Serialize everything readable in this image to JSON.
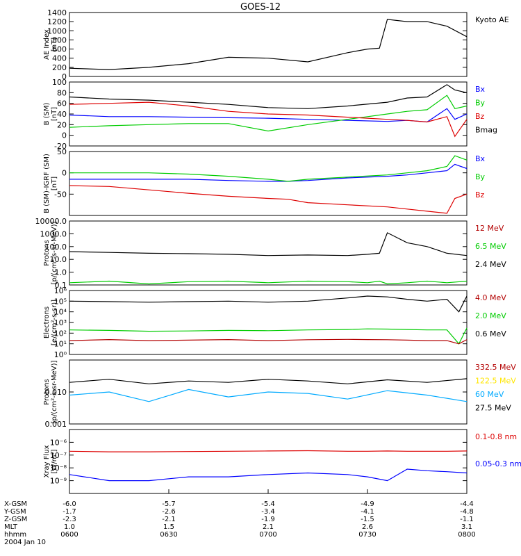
{
  "title": "GOES-12",
  "colors": {
    "black": "#000000",
    "blue": "#0000ff",
    "green": "#00cc00",
    "red": "#dd0000",
    "darkred": "#b30000",
    "yellow": "#ffe600",
    "cyan": "#00aaff"
  },
  "chart_data": [
    {
      "type": "line",
      "ylabel": "AE Index\n[nT]",
      "ylim": [
        0,
        1400
      ],
      "scale": "linear",
      "yticks": [
        [
          "0",
          0
        ],
        [
          "200",
          200
        ],
        [
          "400",
          400
        ],
        [
          "600",
          600
        ],
        [
          "800",
          800
        ],
        [
          "1000",
          1000
        ],
        [
          "1200",
          1200
        ],
        [
          "1400",
          1400
        ]
      ],
      "x": [
        0,
        0.1,
        0.2,
        0.3,
        0.4,
        0.5,
        0.6,
        0.7,
        0.75,
        0.78,
        0.8,
        0.85,
        0.9,
        0.95,
        1.0
      ],
      "series": [
        {
          "name": "Kyoto AE",
          "color": "black",
          "values": [
            180,
            150,
            200,
            280,
            420,
            400,
            320,
            520,
            600,
            620,
            1250,
            1200,
            1200,
            1100,
            870
          ]
        }
      ],
      "legend": [
        {
          "text": "Kyoto AE",
          "color": "black"
        }
      ]
    },
    {
      "type": "line",
      "ylabel": "B (SM)\n[nT]",
      "ylim": [
        -20,
        100
      ],
      "scale": "linear",
      "yticks": [
        [
          "-20",
          -20
        ],
        [
          "0",
          0
        ],
        [
          "20",
          20
        ],
        [
          "40",
          40
        ],
        [
          "60",
          60
        ],
        [
          "80",
          80
        ],
        [
          "100",
          100
        ]
      ],
      "x": [
        0,
        0.1,
        0.2,
        0.3,
        0.4,
        0.5,
        0.6,
        0.7,
        0.8,
        0.85,
        0.9,
        0.95,
        0.97,
        1.0
      ],
      "series": [
        {
          "name": "Bmag",
          "color": "black",
          "values": [
            72,
            68,
            66,
            62,
            58,
            52,
            50,
            55,
            62,
            70,
            72,
            95,
            85,
            80
          ]
        },
        {
          "name": "Bx",
          "color": "blue",
          "values": [
            38,
            35,
            35,
            34,
            33,
            32,
            30,
            28,
            26,
            28,
            25,
            50,
            30,
            40
          ]
        },
        {
          "name": "By",
          "color": "green",
          "values": [
            15,
            18,
            20,
            22,
            22,
            8,
            20,
            30,
            40,
            45,
            48,
            75,
            50,
            55
          ]
        },
        {
          "name": "Bz",
          "color": "red",
          "values": [
            58,
            60,
            62,
            55,
            45,
            40,
            38,
            34,
            30,
            28,
            25,
            35,
            -2,
            30
          ]
        }
      ],
      "legend": [
        {
          "text": "Bx",
          "color": "blue"
        },
        {
          "text": "By",
          "color": "green"
        },
        {
          "text": "Bz",
          "color": "red"
        },
        {
          "text": "Bmag",
          "color": "black"
        }
      ]
    },
    {
      "type": "line",
      "ylabel": "B (SM)-IGRF (SM)\n[nT]",
      "ylim": [
        -100,
        50
      ],
      "scale": "linear",
      "yticks": [
        [
          "-50",
          -50
        ],
        [
          "0",
          0
        ],
        [
          "50",
          50
        ]
      ],
      "x": [
        0,
        0.1,
        0.2,
        0.3,
        0.4,
        0.5,
        0.55,
        0.6,
        0.7,
        0.8,
        0.85,
        0.9,
        0.95,
        0.97,
        1.0
      ],
      "series": [
        {
          "name": "Bx",
          "color": "blue",
          "values": [
            -15,
            -15,
            -15,
            -15,
            -18,
            -20,
            -20,
            -18,
            -12,
            -8,
            -5,
            0,
            5,
            20,
            10
          ]
        },
        {
          "name": "By",
          "color": "green",
          "values": [
            0,
            0,
            0,
            -3,
            -8,
            -15,
            -20,
            -15,
            -10,
            -5,
            0,
            5,
            15,
            40,
            30
          ]
        },
        {
          "name": "Bz",
          "color": "red",
          "values": [
            -30,
            -32,
            -40,
            -48,
            -55,
            -60,
            -62,
            -70,
            -75,
            -80,
            -85,
            -90,
            -95,
            -60,
            -50
          ]
        }
      ],
      "legend": [
        {
          "text": "Bx",
          "color": "blue"
        },
        {
          "text": "By",
          "color": "green"
        },
        {
          "text": "Bz",
          "color": "red"
        }
      ]
    },
    {
      "type": "line",
      "ylabel": "Protons\n[p/(cm²-s-sr-MeV)]",
      "ylim": [
        0.1,
        10000
      ],
      "scale": "log",
      "yticks": [
        [
          "0.1",
          0.1
        ],
        [
          "1.0",
          1
        ],
        [
          "10.0",
          10
        ],
        [
          "100.0",
          100
        ],
        [
          "1000.0",
          1000
        ],
        [
          "10000.0",
          10000
        ]
      ],
      "x": [
        0,
        0.1,
        0.2,
        0.3,
        0.4,
        0.5,
        0.6,
        0.7,
        0.75,
        0.78,
        0.8,
        0.85,
        0.9,
        0.95,
        1.0
      ],
      "series": [
        {
          "name": "2.4 MeV",
          "color": "black",
          "values": [
            40,
            35,
            30,
            28,
            25,
            20,
            22,
            20,
            25,
            30,
            1200,
            200,
            100,
            30,
            20
          ]
        },
        {
          "name": "6.5 MeV",
          "color": "green",
          "values": [
            0.15,
            0.2,
            0.12,
            0.18,
            0.2,
            0.15,
            0.2,
            0.18,
            0.15,
            0.2,
            0.12,
            0.15,
            0.2,
            0.15,
            0.2
          ]
        }
      ],
      "legend": [
        {
          "text": "12 MeV",
          "color": "darkred"
        },
        {
          "text": "6.5 MeV",
          "color": "green"
        },
        {
          "text": "2.4 MeV",
          "color": "black"
        }
      ]
    },
    {
      "type": "line",
      "ylabel": "Electrons\n[e/(cm²-s-sr)]",
      "ylim": [
        1,
        1000000
      ],
      "scale": "log",
      "yticks": [
        [
          "10⁰",
          1
        ],
        [
          "10¹",
          10
        ],
        [
          "10²",
          100
        ],
        [
          "10³",
          1000
        ],
        [
          "10⁴",
          10000
        ],
        [
          "10⁵",
          100000
        ],
        [
          "10⁶",
          1000000
        ]
      ],
      "x": [
        0,
        0.1,
        0.2,
        0.3,
        0.4,
        0.5,
        0.6,
        0.7,
        0.75,
        0.8,
        0.85,
        0.9,
        0.95,
        0.98,
        1.0
      ],
      "series": [
        {
          "name": "0.6 MeV",
          "color": "black",
          "values": [
            100000,
            90000,
            80000,
            90000,
            100000,
            80000,
            100000,
            200000,
            300000,
            250000,
            150000,
            100000,
            150000,
            10000,
            300000
          ]
        },
        {
          "name": "2.0 MeV",
          "color": "green",
          "values": [
            200,
            180,
            150,
            160,
            180,
            170,
            200,
            220,
            250,
            240,
            220,
            200,
            200,
            10,
            300
          ]
        },
        {
          "name": "4.0 MeV",
          "color": "darkred",
          "values": [
            20,
            25,
            20,
            22,
            25,
            20,
            24,
            26,
            25,
            24,
            22,
            20,
            20,
            10,
            25
          ]
        }
      ],
      "legend": [
        {
          "text": "4.0 MeV",
          "color": "darkred"
        },
        {
          "text": "2.0 MeV",
          "color": "green"
        },
        {
          "text": "0.6 MeV",
          "color": "black"
        }
      ]
    },
    {
      "type": "line",
      "ylabel": "Protons\n[p/(cm²-s-sr-MeV)]",
      "ylim": [
        0.001,
        0.1
      ],
      "scale": "log",
      "yticks": [
        [
          "0.001",
          0.001
        ],
        [
          "0.010",
          0.01
        ]
      ],
      "x": [
        0,
        0.1,
        0.2,
        0.3,
        0.4,
        0.5,
        0.6,
        0.7,
        0.8,
        0.9,
        1.0
      ],
      "series": [
        {
          "name": "27.5 MeV",
          "color": "black",
          "values": [
            0.02,
            0.025,
            0.018,
            0.022,
            0.02,
            0.025,
            0.022,
            0.018,
            0.024,
            0.02,
            0.026
          ]
        },
        {
          "name": "60 MeV",
          "color": "cyan",
          "values": [
            0.008,
            0.01,
            0.005,
            0.012,
            0.007,
            0.01,
            0.009,
            0.006,
            0.011,
            0.008,
            0.005
          ]
        }
      ],
      "legend": [
        {
          "text": "332.5 MeV",
          "color": "darkred"
        },
        {
          "text": "122.5 MeV",
          "color": "yellow"
        },
        {
          "text": "60 MeV",
          "color": "cyan"
        },
        {
          "text": "27.5 MeV",
          "color": "black"
        }
      ]
    },
    {
      "type": "line",
      "ylabel": "Xray Flux\n[W/m²]",
      "ylim": [
        1e-10,
        1e-05
      ],
      "scale": "log",
      "yticks": [
        [
          "10⁻⁹",
          1e-09
        ],
        [
          "10⁻⁸",
          1e-08
        ],
        [
          "10⁻⁷",
          1e-07
        ],
        [
          "10⁻⁶",
          1e-06
        ]
      ],
      "x": [
        0,
        0.1,
        0.2,
        0.3,
        0.4,
        0.5,
        0.6,
        0.7,
        0.75,
        0.8,
        0.85,
        0.9,
        0.95,
        1.0
      ],
      "series": [
        {
          "name": "0.1-0.8 nm",
          "color": "red",
          "values": [
            2e-07,
            1.8e-07,
            1.8e-07,
            1.9e-07,
            2e-07,
            2.1e-07,
            2.2e-07,
            2e-07,
            2e-07,
            2.1e-07,
            2e-07,
            2e-07,
            2e-07,
            2.1e-07
          ]
        },
        {
          "name": "0.05-0.3 nm",
          "color": "blue",
          "values": [
            3e-09,
            1e-09,
            1e-09,
            2e-09,
            2e-09,
            3e-09,
            4e-09,
            3e-09,
            2e-09,
            1e-09,
            8e-09,
            6e-09,
            5e-09,
            4e-09
          ]
        }
      ],
      "legend": [
        {
          "text": "0.1-0.8 nm",
          "color": "red"
        },
        {
          "text": "0.05-0.3 nm",
          "color": "blue"
        }
      ]
    }
  ],
  "x_axis": {
    "row_labels": [
      "X-GSM",
      "Y-GSM",
      "Z-GSM",
      "MLT",
      "hhmm"
    ],
    "ticks": [
      {
        "values": [
          "-6.0",
          "-1.7",
          "-2.3",
          "1.0",
          "0600"
        ]
      },
      {
        "values": [
          "-5.7",
          "-2.6",
          "-2.1",
          "1.5",
          "0630"
        ]
      },
      {
        "values": [
          "-5.4",
          "-3.4",
          "-1.9",
          "2.1",
          "0700"
        ]
      },
      {
        "values": [
          "-4.9",
          "-4.1",
          "-1.5",
          "2.6",
          "0730"
        ]
      },
      {
        "values": [
          "-4.4",
          "-4.8",
          "-1.1",
          "3.1",
          "0800"
        ]
      }
    ],
    "date": "2004 Jan 10"
  }
}
